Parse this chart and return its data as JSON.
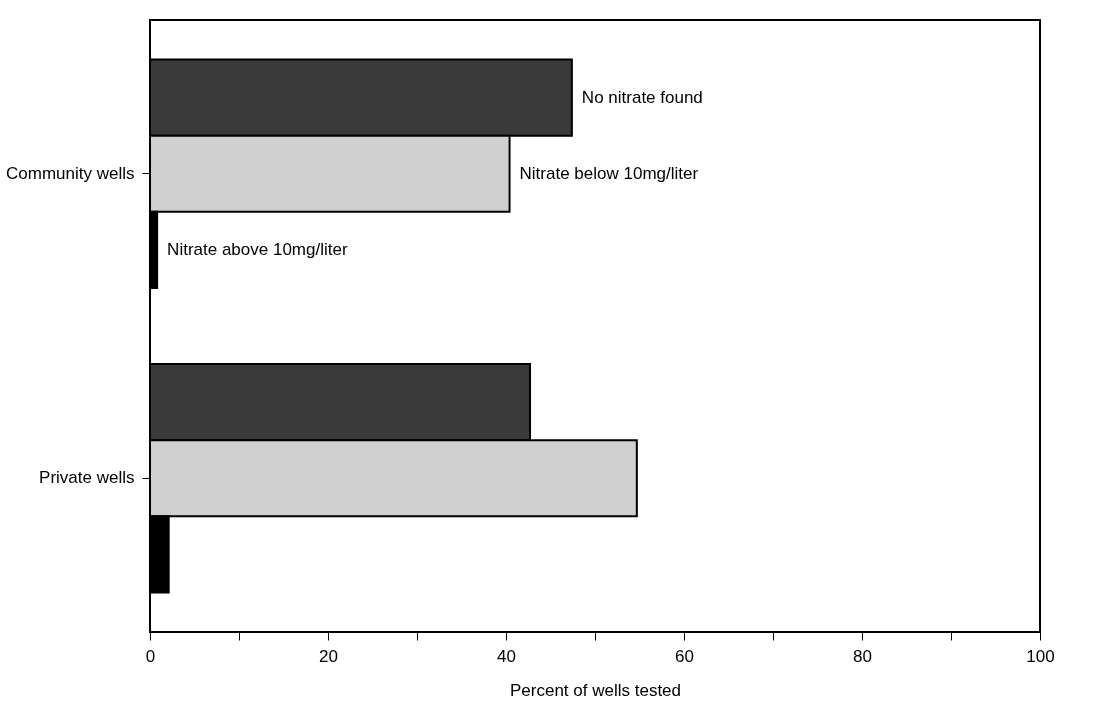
{
  "chart_data": {
    "type": "bar",
    "orientation": "horizontal",
    "xlabel": "Percent of wells tested",
    "categories": [
      "Community wells",
      "Private wells"
    ],
    "series": [
      {
        "name": "No nitrate found",
        "color": "#3a3a3a",
        "values": [
          47.4,
          42.7
        ]
      },
      {
        "name": "Nitrate below 10mg/liter",
        "color": "#d0d0d0",
        "values": [
          40.4,
          54.7
        ]
      },
      {
        "name": "Nitrate above 10mg/liter",
        "color": "#000000",
        "values": [
          0.8,
          2.1
        ]
      }
    ],
    "xlim": [
      0,
      100
    ],
    "xticks": [
      0,
      {
        "value": 10,
        "label": null
      },
      20,
      {
        "value": 30,
        "label": null
      },
      40,
      {
        "value": 50,
        "label": null
      },
      60,
      {
        "value": 70,
        "label": null
      },
      80,
      {
        "value": 90,
        "label": null
      },
      100
    ],
    "grid": false,
    "legend": false
  }
}
